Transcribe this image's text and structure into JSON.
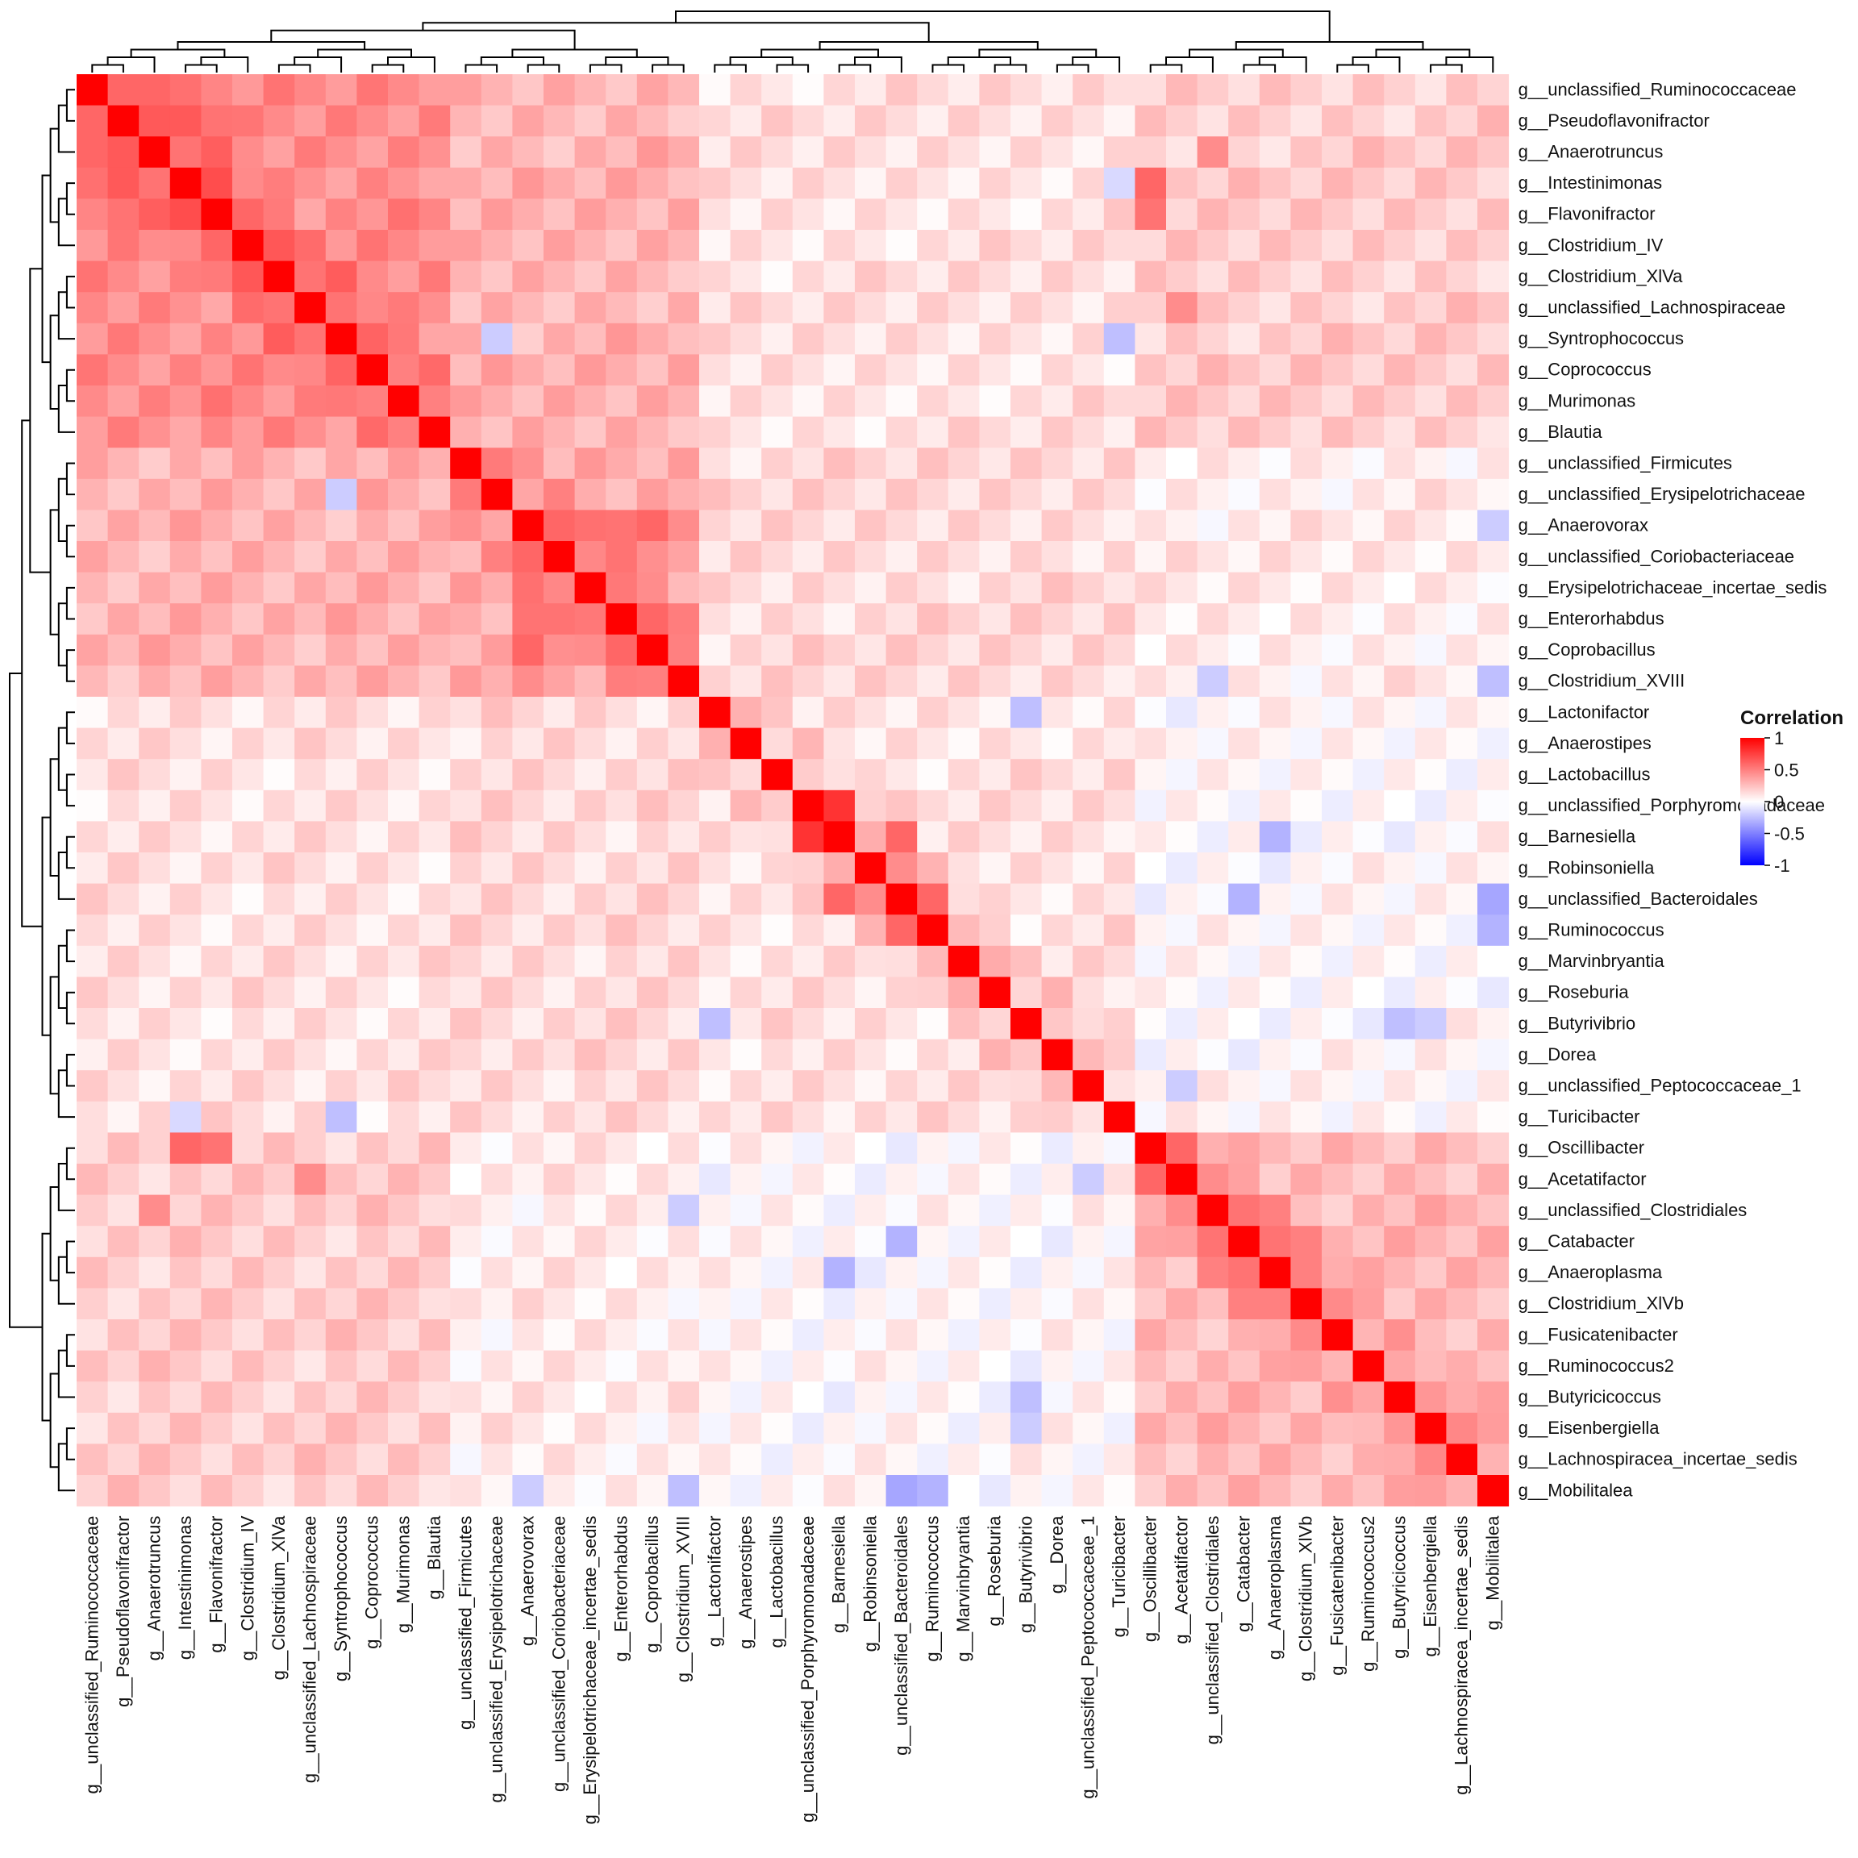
{
  "chart_data": {
    "type": "heatmap",
    "title": "",
    "labels": [
      "g__unclassified_Ruminococcaceae",
      "g__Pseudoflavonifractor",
      "g__Anaerotruncus",
      "g__Intestinimonas",
      "g__Flavonifractor",
      "g__Clostridium_IV",
      "g__Clostridium_XlVa",
      "g__unclassified_Lachnospiraceae",
      "g__Syntrophococcus",
      "g__Coprococcus",
      "g__Murimonas",
      "g__Blautia",
      "g__unclassified_Firmicutes",
      "g__unclassified_Erysipelotrichaceae",
      "g__Anaerovorax",
      "g__unclassified_Coriobacteriaceae",
      "g__Erysipelotrichaceae_incertae_sedis",
      "g__Enterorhabdus",
      "g__Coprobacillus",
      "g__Clostridium_XVIII",
      "g__Lactonifactor",
      "g__Anaerostipes",
      "g__Lactobacillus",
      "g__unclassified_Porphyromonadaceae",
      "g__Barnesiella",
      "g__Robinsoniella",
      "g__unclassified_Bacteroidales",
      "g__Ruminococcus",
      "g__Marvinbryantia",
      "g__Roseburia",
      "g__Butyrivibrio",
      "g__Dorea",
      "g__unclassified_Peptococcaceae_1",
      "g__Turicibacter",
      "g__Oscillibacter",
      "g__Acetatifactor",
      "g__unclassified_Clostridiales",
      "g__Catabacter",
      "g__Anaeroplasma",
      "g__Clostridium_XlVb",
      "g__Fusicatenibacter",
      "g__Ruminococcus2",
      "g__Butyricicoccus",
      "g__Eisenbergiella",
      "g__Lachnospiracea_incertae_sedis",
      "g__Mobilitalea"
    ],
    "clusters": [
      {
        "start": 0,
        "end": 11
      },
      {
        "start": 12,
        "end": 19
      },
      {
        "start": 20,
        "end": 33
      },
      {
        "start": 34,
        "end": 45
      }
    ],
    "base_correlations": [
      [
        0.45,
        0.3,
        0.12,
        0.2
      ],
      [
        0.3,
        0.35,
        0.15,
        0.08
      ],
      [
        0.12,
        0.15,
        0.12,
        0.02
      ],
      [
        0.2,
        0.08,
        0.02,
        0.28
      ]
    ],
    "strong_pairs": [
      [
        0,
        1,
        0.6
      ],
      [
        0,
        2,
        0.6
      ],
      [
        1,
        3,
        0.65
      ],
      [
        1,
        4,
        0.55
      ],
      [
        3,
        4,
        0.7
      ],
      [
        2,
        3,
        0.55
      ],
      [
        6,
        7,
        0.55
      ],
      [
        7,
        8,
        0.55
      ],
      [
        9,
        10,
        0.5
      ],
      [
        10,
        11,
        0.5
      ],
      [
        14,
        15,
        0.6
      ],
      [
        14,
        17,
        0.55
      ],
      [
        14,
        18,
        0.6
      ],
      [
        15,
        17,
        0.55
      ],
      [
        17,
        18,
        0.6
      ],
      [
        18,
        19,
        0.5
      ],
      [
        23,
        24,
        0.8
      ],
      [
        24,
        26,
        0.6
      ],
      [
        26,
        27,
        0.6
      ],
      [
        25,
        26,
        0.45
      ],
      [
        34,
        35,
        0.6
      ],
      [
        36,
        37,
        0.55
      ],
      [
        36,
        38,
        0.5
      ],
      [
        37,
        38,
        0.55
      ],
      [
        38,
        39,
        0.5
      ],
      [
        37,
        39,
        0.5
      ],
      [
        3,
        34,
        0.6
      ],
      [
        4,
        34,
        0.55
      ],
      [
        2,
        36,
        0.45
      ],
      [
        7,
        35,
        0.45
      ]
    ],
    "negative_pairs": [
      [
        26,
        45,
        -0.35
      ],
      [
        27,
        45,
        -0.3
      ],
      [
        37,
        26,
        -0.3
      ],
      [
        38,
        24,
        -0.3
      ],
      [
        42,
        30,
        -0.25
      ],
      [
        30,
        20,
        -0.25
      ],
      [
        8,
        13,
        -0.2
      ],
      [
        8,
        33,
        -0.25
      ],
      [
        45,
        19,
        -0.25
      ],
      [
        45,
        14,
        -0.2
      ],
      [
        33,
        3,
        -0.15
      ],
      [
        35,
        32,
        -0.2
      ],
      [
        36,
        19,
        -0.2
      ],
      [
        43,
        30,
        -0.2
      ]
    ],
    "legend": {
      "title": "Correlation",
      "ticks": [
        "1",
        "0.5",
        "0",
        "-0.5",
        "-1"
      ],
      "tick_values": [
        1,
        0.5,
        0,
        -0.5,
        -1
      ]
    },
    "color_scale": {
      "low": "#0000ff",
      "mid": "#ffffff",
      "high": "#ff0000"
    },
    "range": [
      -1,
      1
    ]
  }
}
